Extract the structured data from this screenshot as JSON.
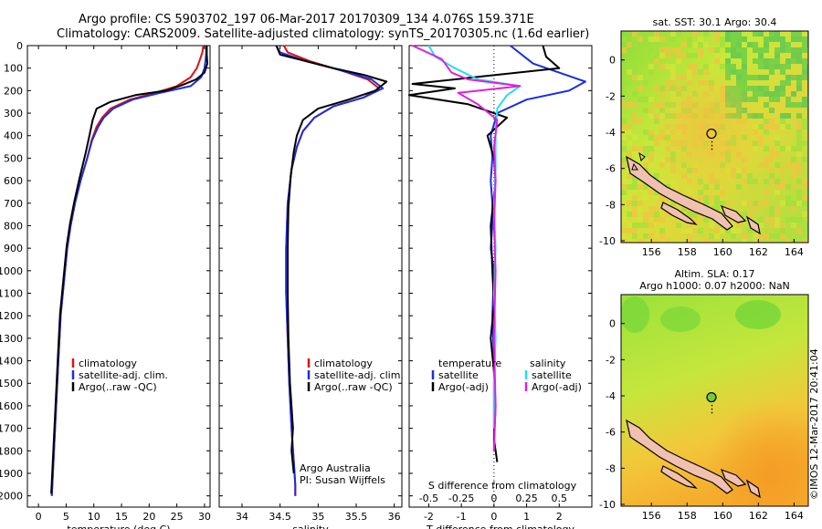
{
  "header": {
    "line1": "Argo profile: CS 5903702_197 06-Mar-2017 20170309_134 4.076S 159.371E",
    "line2": "Climatology: CARS2009. Satellite-adjusted climatology: synTS_20170305.nc (1.6d earlier)"
  },
  "colors": {
    "climatology": "#e01010",
    "satellite": "#1a2ee0",
    "argo": "#000000",
    "salinity_satellite": "#20e0e8",
    "salinity_argo": "#e020e0"
  },
  "chart_data": [
    {
      "type": "line",
      "id": "temperature",
      "xlabel": "temperature (deg C)",
      "ylabel": "",
      "xlim": [
        -2,
        31
      ],
      "ylim": [
        2050,
        0
      ],
      "xticks": [
        0,
        5,
        10,
        15,
        20,
        25,
        30
      ],
      "yticks": [
        0,
        100,
        200,
        300,
        400,
        500,
        600,
        700,
        800,
        900,
        1000,
        1100,
        1200,
        1300,
        1400,
        1500,
        1600,
        1700,
        1800,
        1900,
        2000
      ],
      "legend": [
        "climatology",
        "satellite-adj. clim.",
        "Argo(..raw -QC)"
      ],
      "series": [
        {
          "name": "climatology",
          "color": "#e01010",
          "x": [
            29.8,
            29.6,
            29.2,
            28.6,
            27.5,
            25.0,
            21.0,
            16.5,
            13.0,
            11.5,
            10.5,
            9.6,
            8.8,
            7.6,
            6.6,
            5.8,
            5.2,
            4.8,
            4.4,
            4.0,
            3.6,
            3.2,
            2.8,
            2.6,
            2.4
          ],
          "y": [
            0,
            30,
            60,
            100,
            140,
            180,
            210,
            240,
            280,
            320,
            360,
            420,
            500,
            600,
            700,
            800,
            900,
            1000,
            1100,
            1200,
            1400,
            1600,
            1800,
            1900,
            2000
          ]
        },
        {
          "name": "satellite-adj. clim.",
          "color": "#1a2ee0",
          "x": [
            30.3,
            30.3,
            30.2,
            30.0,
            29.4,
            27.5,
            22.0,
            17.0,
            13.5,
            11.8,
            10.8,
            9.7,
            8.8,
            7.6,
            6.6,
            5.8,
            5.2,
            4.8,
            4.4,
            4.0,
            3.6,
            3.2,
            2.8,
            2.6,
            2.4
          ],
          "y": [
            0,
            30,
            60,
            100,
            140,
            180,
            210,
            240,
            280,
            320,
            360,
            420,
            500,
            600,
            700,
            800,
            900,
            1000,
            1100,
            1200,
            1400,
            1600,
            1800,
            1900,
            2000
          ]
        },
        {
          "name": "Argo(..raw -QC)",
          "color": "#000000",
          "x": [
            30.4,
            30.4,
            30.5,
            30.0,
            28.5,
            26.0,
            23.0,
            17.5,
            13.0,
            10.5,
            9.8,
            9.2,
            8.5,
            7.4,
            6.5,
            5.7,
            5.1,
            4.7,
            4.3,
            3.9,
            3.5,
            3.1,
            2.7,
            2.5,
            2.3
          ],
          "y": [
            0,
            40,
            80,
            120,
            150,
            175,
            200,
            220,
            250,
            280,
            330,
            400,
            480,
            590,
            690,
            790,
            890,
            990,
            1090,
            1190,
            1390,
            1590,
            1790,
            1890,
            1990
          ]
        }
      ]
    },
    {
      "type": "line",
      "id": "salinity",
      "xlabel": "salinity",
      "ylabel": "",
      "xlim": [
        33.7,
        36.1
      ],
      "ylim": [
        2050,
        0
      ],
      "xticks": [
        34,
        34.5,
        35,
        35.5,
        36
      ],
      "yticks": [
        0,
        100,
        200,
        300,
        400,
        500,
        600,
        700,
        800,
        900,
        1000,
        1100,
        1200,
        1300,
        1400,
        1500,
        1600,
        1700,
        1800,
        1900,
        2000
      ],
      "legend": [
        "climatology",
        "satellite-adj. clim.",
        "Argo(..raw -QC)"
      ],
      "annotations": [
        "Argo Australia",
        "PI: Susan Wijffels"
      ],
      "series": [
        {
          "name": "climatology",
          "color": "#e01010",
          "x": [
            34.55,
            34.6,
            34.9,
            35.3,
            35.65,
            35.8,
            35.6,
            35.2,
            34.95,
            34.8,
            34.72,
            34.65,
            34.6,
            34.58,
            34.58,
            34.6,
            34.62,
            34.65,
            34.68,
            34.7,
            34.7
          ],
          "y": [
            0,
            30,
            70,
            110,
            150,
            190,
            230,
            270,
            320,
            380,
            450,
            550,
            700,
            900,
            1100,
            1300,
            1500,
            1700,
            1850,
            1950,
            2000
          ]
        },
        {
          "name": "satellite-adj. clim.",
          "color": "#1a2ee0",
          "x": [
            34.45,
            34.5,
            34.85,
            35.3,
            35.7,
            35.85,
            35.6,
            35.2,
            34.95,
            34.8,
            34.72,
            34.65,
            34.6,
            34.58,
            34.58,
            34.6,
            34.62,
            34.65,
            34.68,
            34.7,
            34.7
          ],
          "y": [
            0,
            30,
            70,
            110,
            150,
            190,
            230,
            270,
            320,
            380,
            450,
            550,
            700,
            900,
            1100,
            1300,
            1500,
            1700,
            1850,
            1950,
            2000
          ]
        },
        {
          "name": "Argo(..raw -QC)",
          "color": "#000000",
          "x": [
            34.45,
            34.5,
            35.2,
            35.6,
            35.9,
            35.75,
            35.4,
            35.0,
            34.8,
            34.72,
            34.68,
            34.64,
            34.61,
            34.6,
            34.6,
            34.61,
            34.63,
            34.67,
            34.65,
            34.68
          ],
          "y": [
            0,
            40,
            100,
            130,
            160,
            200,
            240,
            280,
            330,
            400,
            470,
            580,
            720,
            900,
            1100,
            1300,
            1500,
            1700,
            1800,
            1900
          ]
        }
      ]
    },
    {
      "type": "line",
      "id": "difference",
      "xlabel": "T difference from climatology",
      "xlabel_top": "S difference from climatology",
      "xlim": [
        -2.6,
        3.0
      ],
      "ylim": [
        2050,
        0
      ],
      "xticks": [
        -2,
        -1,
        0,
        1,
        2
      ],
      "xticks_top": [
        "-0.5",
        "-0.25",
        "0",
        "0.25",
        "0.5"
      ],
      "legend_temperature": [
        "temperature",
        "satellite",
        "Argo(-adj)"
      ],
      "legend_salinity": [
        "salinity",
        "satellite",
        "Argo(-adj)"
      ],
      "series": [
        {
          "name": "satellite",
          "group": "temperature",
          "color": "#1a2ee0",
          "x": [
            0.5,
            1.2,
            2.8,
            2.3,
            1.0,
            0.1,
            -0.1,
            -0.05,
            -0.1,
            -0.05,
            -0.05,
            -0.1,
            0.0,
            -0.05,
            0.0,
            0.0,
            0.0
          ],
          "y": [
            0,
            80,
            160,
            200,
            240,
            300,
            400,
            500,
            600,
            700,
            800,
            900,
            1000,
            1200,
            1400,
            1600,
            1800
          ]
        },
        {
          "name": "Argo(-adj)",
          "group": "temperature",
          "color": "#000000",
          "x": [
            1.5,
            1.6,
            2.0,
            -2.5,
            -1.2,
            -2.6,
            -0.8,
            0.4,
            -0.2,
            0.0,
            0.05,
            -0.1,
            -0.05,
            0.0,
            -0.1,
            0.0,
            0.05,
            0.0,
            0.1
          ],
          "y": [
            0,
            50,
            100,
            170,
            190,
            220,
            260,
            320,
            400,
            500,
            600,
            800,
            1000,
            1150,
            1300,
            1450,
            1600,
            1750,
            1850
          ]
        },
        {
          "name": "satellite",
          "group": "salinity",
          "color": "#20e0e8",
          "x": [
            -2.0,
            -1.8,
            -1.2,
            -0.5,
            0.8,
            0.4,
            0.1,
            0.05,
            0.05,
            0.0,
            0.05,
            0.0,
            0.05,
            0.0,
            0.0
          ],
          "y": [
            0,
            50,
            100,
            150,
            180,
            220,
            280,
            400,
            550,
            700,
            900,
            1100,
            1300,
            1500,
            1700
          ]
        },
        {
          "name": "Argo(-adj)",
          "group": "salinity",
          "color": "#e020e0",
          "x": [
            -2.5,
            -1.6,
            -1.3,
            -0.8,
            0.8,
            -1.1,
            -0.5,
            0.1,
            0.0,
            0.05,
            0.0,
            0.05,
            0.0,
            0.05,
            0.0
          ],
          "y": [
            0,
            60,
            120,
            150,
            180,
            210,
            260,
            330,
            450,
            600,
            800,
            1000,
            1300,
            1600,
            1800
          ]
        }
      ]
    },
    {
      "type": "heatmap",
      "id": "sst_map",
      "title": "sat. SST: 30.1  Argo: 30.4",
      "xticks": [
        156,
        158,
        160,
        162,
        164
      ],
      "yticks": [
        0,
        -2,
        -4,
        -6,
        -8,
        -10
      ],
      "xlim": [
        154.3,
        164.8
      ],
      "ylim": [
        -10.1,
        1.6
      ],
      "float_position": {
        "lon": 159.371,
        "lat": -4.076
      }
    },
    {
      "type": "heatmap",
      "id": "sla_map",
      "title_line1": "Altim. SLA: 0.17",
      "title_line2": "Argo h1000: 0.07 h2000: NaN",
      "xticks": [
        156,
        158,
        160,
        162,
        164
      ],
      "yticks": [
        0,
        -2,
        -4,
        -6,
        -8,
        -10
      ],
      "xlim": [
        154.3,
        164.8
      ],
      "ylim": [
        -10.1,
        1.6
      ],
      "float_position": {
        "lon": 159.371,
        "lat": -4.076
      }
    }
  ],
  "footer": {
    "stamp": "©IMOS 12-Mar-2017 20:41:04"
  }
}
